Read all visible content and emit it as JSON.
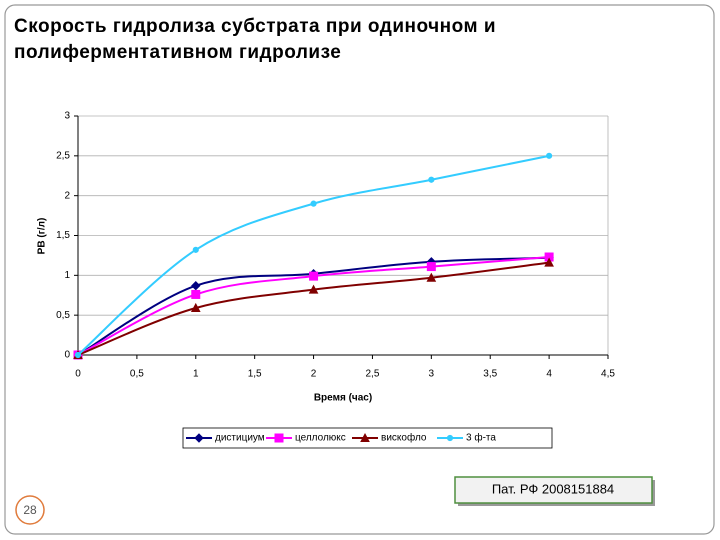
{
  "chart_data": {
    "type": "line",
    "title": "Скорость гидролиза субстрата при одиночном и полиферментативном гидролизе",
    "xlabel": "Время (час)",
    "ylabel": "РВ (г/л)",
    "x": [
      0,
      1,
      2,
      3,
      4
    ],
    "xlim": [
      0,
      4.5
    ],
    "ylim": [
      0,
      3
    ],
    "xticks": [
      0,
      {
        "value": 0.5,
        "label": "0,5"
      },
      1,
      {
        "value": 1.5,
        "label": "1,5"
      },
      2,
      {
        "value": 2.5,
        "label": "2,5"
      },
      3,
      {
        "value": 3.5,
        "label": "3,5"
      },
      4,
      {
        "value": 4.5,
        "label": "4,5"
      }
    ],
    "yticks": [
      0,
      {
        "value": 0.5,
        "label": "0,5"
      },
      1,
      {
        "value": 1.5,
        "label": "1,5"
      },
      2,
      {
        "value": 2.5,
        "label": "2,5"
      },
      3
    ],
    "grid": true,
    "legend": "bottom",
    "smooth": true,
    "series": [
      {
        "name": "дистициум",
        "color": "#000080",
        "marker": "diamond",
        "values": [
          0,
          0.87,
          1.02,
          1.17,
          1.22
        ]
      },
      {
        "name": "целлолюкс",
        "color": "#ff00ff",
        "marker": "square",
        "values": [
          0,
          0.76,
          0.99,
          1.11,
          1.23
        ]
      },
      {
        "name": "вискофло",
        "color": "#800000",
        "marker": "triangle",
        "values": [
          0,
          0.59,
          0.82,
          0.97,
          1.16
        ]
      },
      {
        "name": "3 ф-та",
        "color": "#33ccff",
        "marker": "circle",
        "values": [
          0,
          1.32,
          1.9,
          2.2,
          2.5
        ]
      }
    ],
    "annotation": "Пат. РФ 2008151884",
    "slide_number": 28
  }
}
